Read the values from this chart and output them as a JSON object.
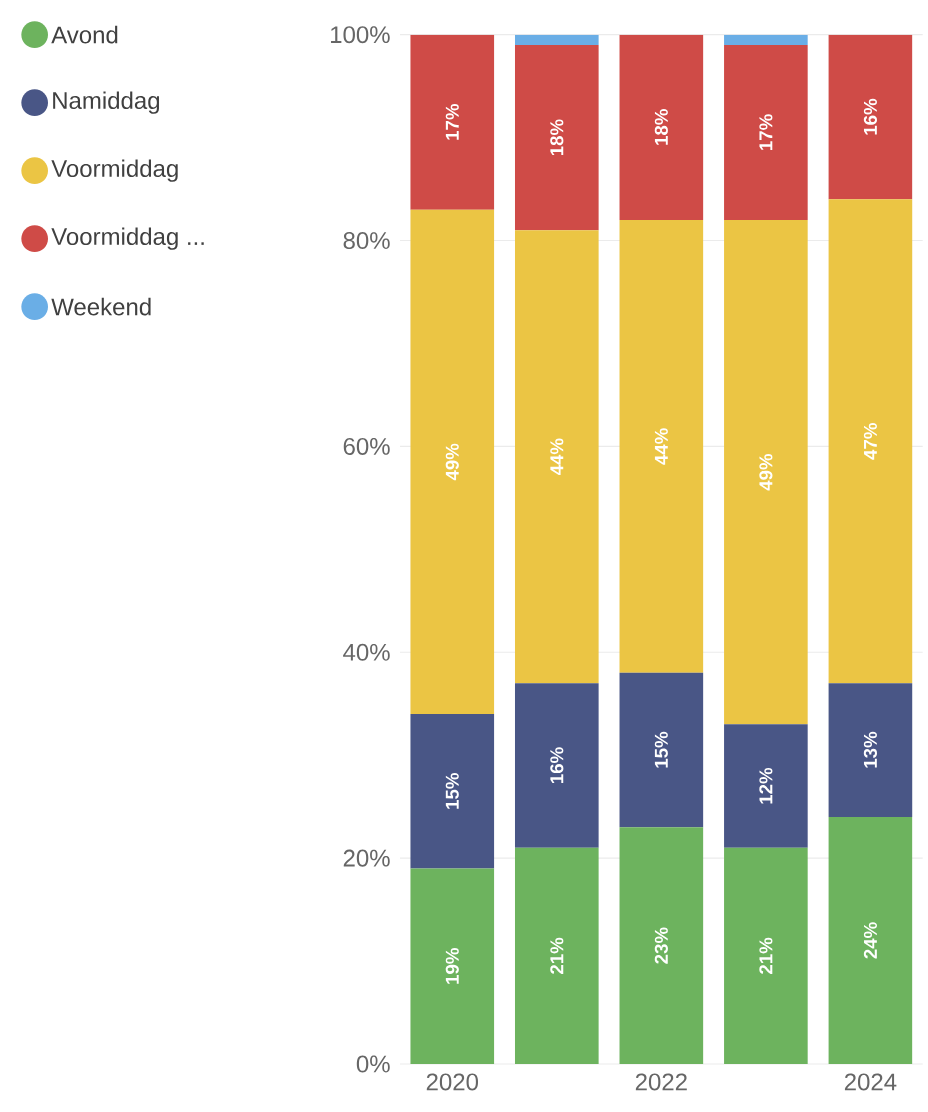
{
  "chart_data": {
    "type": "bar",
    "stacked": true,
    "categories": [
      "2020",
      null,
      "2022",
      null,
      "2024"
    ],
    "series": [
      {
        "name": "Avond",
        "color": "#6db35e",
        "values": [
          19,
          21,
          23,
          21,
          24
        ],
        "value_labels": [
          "19%",
          "21%",
          "23%",
          "21%",
          "24%"
        ]
      },
      {
        "name": "Namiddag",
        "color": "#495686",
        "values": [
          15,
          16,
          15,
          12,
          13
        ],
        "value_labels": [
          "15%",
          "16%",
          "15%",
          "12%",
          "13%"
        ]
      },
      {
        "name": "Voormiddag",
        "color": "#ebc544",
        "values": [
          49,
          44,
          44,
          49,
          47
        ],
        "value_labels": [
          "49%",
          "44%",
          "44%",
          "49%",
          "47%"
        ]
      },
      {
        "name": "Voormiddag ...",
        "color": "#cf4b47",
        "values": [
          17,
          18,
          18,
          17,
          16
        ],
        "value_labels": [
          "17%",
          "18%",
          "18%",
          "17%",
          "16%"
        ]
      },
      {
        "name": "Weekend",
        "color": "#6aaee6",
        "values": [
          0,
          1,
          0,
          1,
          0
        ],
        "value_labels": [
          null,
          null,
          null,
          null,
          null
        ]
      }
    ],
    "ylim": [
      0,
      100
    ],
    "yticks": [
      {
        "value": 0,
        "label": "0%"
      },
      {
        "value": 20,
        "label": "20%"
      },
      {
        "value": 40,
        "label": "40%"
      },
      {
        "value": 60,
        "label": "60%"
      },
      {
        "value": 80,
        "label": "80%"
      },
      {
        "value": 100,
        "label": "100%"
      }
    ],
    "grid": "y",
    "legend": "top left"
  }
}
